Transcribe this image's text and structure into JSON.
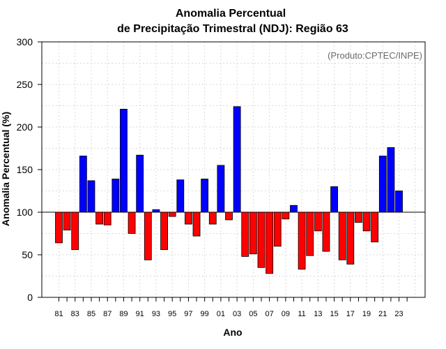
{
  "chart_data": {
    "type": "bar",
    "title_line1": "Anomalia Percentual",
    "title_line2": "de Precipitação Trimestral (NDJ): Região 63",
    "credit": "(Produto:CPTEC/INPE)",
    "xlabel": "Ano",
    "ylabel": "Anomalia Percentual (%)",
    "ylim": [
      0,
      300
    ],
    "yticks": [
      0,
      50,
      100,
      150,
      200,
      250,
      300
    ],
    "reference_line": 100,
    "grid": true,
    "colors": {
      "above": "#0000ff",
      "below": "#ff0000",
      "edge": "#000000"
    },
    "x_tick_labels": [
      "81",
      "83",
      "85",
      "87",
      "89",
      "91",
      "93",
      "95",
      "97",
      "99",
      "01",
      "03",
      "05",
      "07",
      "09",
      "11",
      "13",
      "15",
      "17",
      "19",
      "21",
      "23"
    ],
    "categories": [
      "1981",
      "1982",
      "1983",
      "1984",
      "1985",
      "1986",
      "1987",
      "1988",
      "1989",
      "1990",
      "1991",
      "1992",
      "1993",
      "1994",
      "1995",
      "1996",
      "1997",
      "1998",
      "1999",
      "2000",
      "2001",
      "2002",
      "2003",
      "2004",
      "2005",
      "2006",
      "2007",
      "2008",
      "2009",
      "2010",
      "2011",
      "2012",
      "2013",
      "2014",
      "2015",
      "2016",
      "2017",
      "2018",
      "2019",
      "2020",
      "2021",
      "2022",
      "2023"
    ],
    "values": [
      64,
      79,
      56,
      166,
      137,
      86,
      85,
      139,
      221,
      75,
      167,
      44,
      103,
      56,
      95,
      138,
      86,
      72,
      139,
      86,
      155,
      91,
      224,
      48,
      51,
      35,
      28,
      60,
      92,
      108,
      33,
      49,
      78,
      54,
      130,
      44,
      39,
      88,
      78,
      65,
      166,
      176,
      125
    ]
  }
}
